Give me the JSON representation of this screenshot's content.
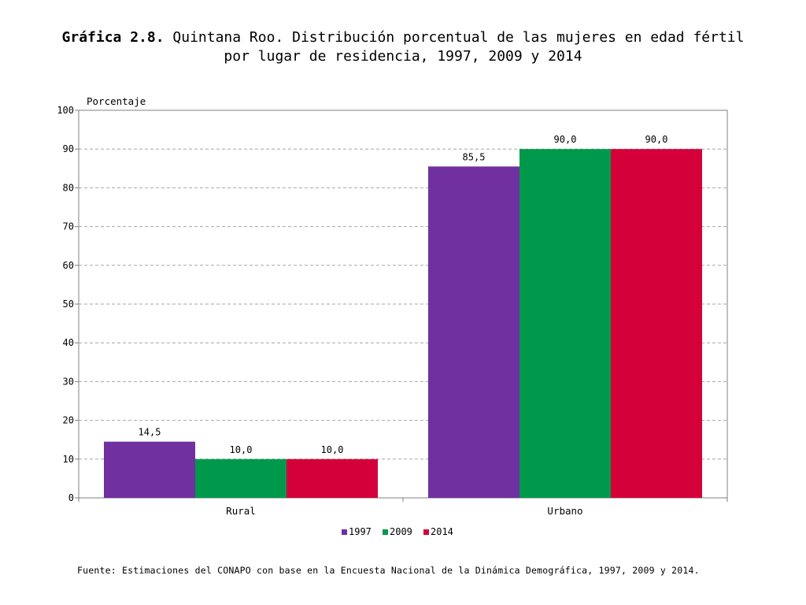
{
  "title": {
    "bold": "Gráfica 2.8.",
    "rest": " Quintana Roo. Distribución porcentual de las mujeres en edad fértil",
    "line2": "por lugar de residencia, 1997, 2009 y 2014"
  },
  "footnote": "Fuente: Estimaciones del CONAPO con base en la Encuesta Nacional de la Dinámica Demográfica, 1997, 2009 y 2014.",
  "chart_data": {
    "type": "bar",
    "ylabel": "Porcentaje",
    "xlabel": "",
    "ylim": [
      0,
      100
    ],
    "yticks": [
      0,
      10,
      20,
      30,
      40,
      50,
      60,
      70,
      80,
      90,
      100
    ],
    "categories": [
      "Rural",
      "Urbano"
    ],
    "series": [
      {
        "name": "1997",
        "values": [
          14.5,
          85.5
        ],
        "labels": [
          "14,5",
          "85,5"
        ],
        "color": "#7030a0"
      },
      {
        "name": "2009",
        "values": [
          10.0,
          90.0
        ],
        "labels": [
          "10,0",
          "90,0"
        ],
        "color": "#00994c"
      },
      {
        "name": "2014",
        "values": [
          10.0,
          90.0
        ],
        "labels": [
          "10,0",
          "90,0"
        ],
        "color": "#d4003a"
      }
    ],
    "grid": "horizontal-dashed",
    "legend_position": "bottom"
  }
}
